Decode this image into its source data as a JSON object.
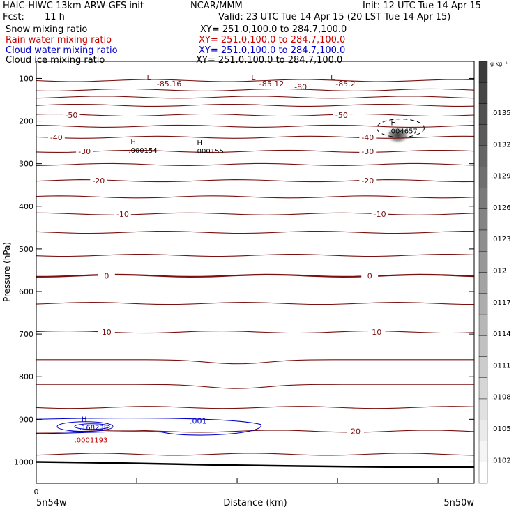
{
  "header": {
    "title_left": "HAIC-HIWC 13km ARW-GFS init",
    "institution": "NCAR/MMM",
    "init": "Init: 12 UTC Tue 14 Apr 15",
    "fcst_label": "Fcst:",
    "fcst_value": "11 h",
    "valid": "Valid: 23 UTC Tue 14 Apr 15 (20 LST Tue 14 Apr 15)"
  },
  "fields": [
    {
      "label": "Snow mixing ratio",
      "xy": "XY= 251.0,100.0 to 284.7,100.0",
      "color": "#000000"
    },
    {
      "label": "Rain water mixing ratio",
      "xy": "XY= 251.0,100.0 to 284.7,100.0",
      "color": "#c80000"
    },
    {
      "label": "Cloud water mixing ratio",
      "xy": "XY= 251.0,100.0 to 284.7,100.0",
      "color": "#0000c8"
    },
    {
      "label": "Cloud ice mixing ratio",
      "xy": "XY= 251.0,100.0 to 284.7,100.0",
      "color": "#000000"
    }
  ],
  "chart_data": {
    "type": "contour",
    "xlabel": "Distance (km)",
    "ylabel": "Pressure (hPa)",
    "ylim": [
      1050,
      60
    ],
    "xlim": [
      0,
      436
    ],
    "x_tick_values": [
      0,
      100,
      200,
      300,
      400
    ],
    "x_tick_labels": [
      "0",
      "",
      "",
      "",
      ""
    ],
    "x_endpoint_labels": {
      "left": "5n54w",
      "right": "5n50w"
    },
    "y_ticks": [
      100,
      200,
      300,
      400,
      500,
      600,
      700,
      800,
      900,
      1000
    ],
    "colorbar": {
      "unit": "g kg⁻¹",
      "labels": [
        ".0135",
        ".0132",
        ".0129",
        ".0126",
        ".0123",
        ".012",
        ".0117",
        ".0114",
        ".0111",
        ".0108",
        ".0105",
        ".0102"
      ]
    },
    "temperature_contours": [
      {
        "p": 105,
        "label": ""
      },
      {
        "p": 127,
        "label": ""
      },
      {
        "p": 144,
        "label": ""
      },
      {
        "p": 163,
        "label": ""
      },
      {
        "p": 186,
        "label": "-50",
        "label_x": [
          35,
          304
        ]
      },
      {
        "p": 212,
        "label": ""
      },
      {
        "p": 238,
        "label": "-40",
        "label_x": [
          20,
          330
        ]
      },
      {
        "p": 271,
        "label": "-30",
        "label_x": [
          48,
          330
        ]
      },
      {
        "p": 302,
        "label": ""
      },
      {
        "p": 340,
        "label": "-20",
        "label_x": [
          62,
          330
        ]
      },
      {
        "p": 378,
        "label": ""
      },
      {
        "p": 418,
        "label": "-10",
        "label_x": [
          86,
          342
        ]
      },
      {
        "p": 461,
        "label": ""
      },
      {
        "p": 515,
        "label": ""
      },
      {
        "p": 563,
        "label": "0",
        "label_x": [
          70,
          332
        ],
        "bold": true
      },
      {
        "p": 628,
        "label": ""
      },
      {
        "p": 695,
        "label": "10",
        "label_x": [
          70,
          339
        ]
      },
      {
        "p": 760,
        "label": ""
      },
      {
        "p": 818,
        "label": ""
      },
      {
        "p": 872,
        "label": ""
      },
      {
        "p": 928,
        "label": "20",
        "label_x": [
          318
        ]
      },
      {
        "p": 982,
        "label": ""
      }
    ],
    "tropopause_labels": [
      {
        "x": 110,
        "p": 98,
        "text": "L"
      },
      {
        "x": 120,
        "p": 112,
        "text": "-85.16"
      },
      {
        "x": 214,
        "p": 98,
        "text": "L"
      },
      {
        "x": 222,
        "p": 112,
        "text": "-85.12"
      },
      {
        "x": 257,
        "p": 120,
        "text": "-80"
      },
      {
        "x": 293,
        "p": 98,
        "text": "L"
      },
      {
        "x": 298,
        "p": 112,
        "text": "-85.2"
      }
    ],
    "maxima": [
      {
        "x": 94,
        "p": 255,
        "mark": "H",
        "value": ".000154",
        "color": "#000000"
      },
      {
        "x": 160,
        "p": 256,
        "mark": "H",
        "value": ".000155",
        "color": "#000000"
      },
      {
        "x": 353,
        "p": 210,
        "mark": "H",
        "value": ".004657",
        "color": "#000000"
      },
      {
        "x": 45,
        "p": 905,
        "mark": "H",
        "value": ".168238",
        "color": "#0000c8"
      },
      {
        "x": 40,
        "p": 935,
        "mark": "",
        "value": ".0001193",
        "color": "#c80000"
      }
    ],
    "cloud_water_contour_label": ".001",
    "ground_pressure": [
      1000,
      1003,
      1007,
      1010,
      1012,
      1012
    ]
  }
}
